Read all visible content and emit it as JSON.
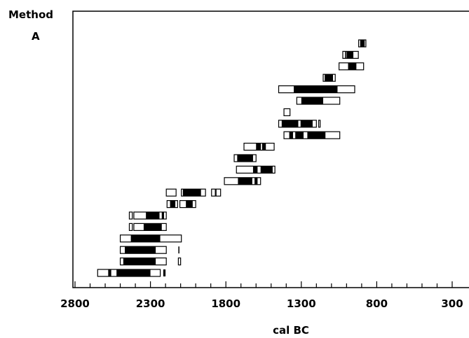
{
  "chart_data": {
    "type": "range-bars",
    "method_label": "Method",
    "method_value": "A",
    "xlabel": "cal BC",
    "xlim": [
      2800,
      300
    ],
    "x_ticks": [
      2800,
      2300,
      1800,
      1300,
      800,
      300
    ],
    "x_minor_step": 100,
    "rows": [
      {
        "segments": [
          [
            872,
            920,
            "open"
          ],
          [
            880,
            910,
            "filled"
          ]
        ]
      },
      {
        "segments": [
          [
            922,
            1025,
            "open"
          ],
          [
            955,
            1000,
            "filled"
          ],
          [
            1003,
            1010,
            "filled"
          ]
        ]
      },
      {
        "segments": [
          [
            887,
            1050,
            "open"
          ],
          [
            935,
            990,
            "filled"
          ]
        ]
      },
      {
        "segments": [
          [
            1075,
            1155,
            "open"
          ],
          [
            1090,
            1145,
            "filled"
          ]
        ]
      },
      {
        "segments": [
          [
            946,
            1450,
            "open"
          ],
          [
            1060,
            1350,
            "filled"
          ]
        ]
      },
      {
        "segments": [
          [
            1045,
            1330,
            "open"
          ],
          [
            1155,
            1300,
            "filled"
          ]
        ]
      },
      {
        "segments": [
          [
            1375,
            1415,
            "open"
          ]
        ]
      },
      {
        "segments": [
          [
            1175,
            1185,
            "open"
          ],
          [
            1200,
            1450,
            "open"
          ],
          [
            1225,
            1305,
            "filled"
          ],
          [
            1320,
            1430,
            "filled"
          ]
        ]
      },
      {
        "segments": [
          [
            1045,
            1415,
            "open"
          ],
          [
            1140,
            1260,
            "filled"
          ],
          [
            1285,
            1340,
            "filled"
          ],
          [
            1355,
            1380,
            "filled"
          ]
        ]
      },
      {
        "segments": [
          [
            1480,
            1680,
            "open"
          ],
          [
            1535,
            1560,
            "filled"
          ],
          [
            1568,
            1600,
            "filled"
          ]
        ]
      },
      {
        "segments": [
          [
            1600,
            1745,
            "open"
          ],
          [
            1620,
            1725,
            "filled"
          ]
        ]
      },
      {
        "segments": [
          [
            1475,
            1730,
            "open"
          ],
          [
            1490,
            1570,
            "filled"
          ],
          [
            1590,
            1620,
            "filled"
          ]
        ]
      },
      {
        "segments": [
          [
            1570,
            1810,
            "open"
          ],
          [
            1625,
            1720,
            "filled"
          ],
          [
            1590,
            1610,
            "filled"
          ]
        ]
      },
      {
        "segments": [
          [
            1835,
            1865,
            "open"
          ],
          [
            1870,
            1895,
            "open"
          ],
          [
            1935,
            2095,
            "open"
          ],
          [
            1965,
            2085,
            "filled"
          ],
          [
            2130,
            2195,
            "open"
          ]
        ]
      },
      {
        "segments": [
          [
            2000,
            2105,
            "open"
          ],
          [
            2020,
            2065,
            "filled"
          ],
          [
            2120,
            2190,
            "open"
          ],
          [
            2135,
            2170,
            "filled"
          ]
        ]
      },
      {
        "segments": [
          [
            2195,
            2410,
            "open"
          ],
          [
            2240,
            2330,
            "filled"
          ],
          [
            2210,
            2225,
            "filled"
          ],
          [
            2420,
            2440,
            "open"
          ]
        ]
      },
      {
        "segments": [
          [
            2195,
            2410,
            "open"
          ],
          [
            2225,
            2345,
            "filled"
          ],
          [
            2420,
            2440,
            "open"
          ]
        ]
      },
      {
        "segments": [
          [
            2095,
            2500,
            "open"
          ],
          [
            2235,
            2430,
            "filled"
          ]
        ]
      },
      {
        "segments": [
          [
            2195,
            2500,
            "open"
          ],
          [
            2265,
            2470,
            "filled"
          ],
          [
            2110,
            2115,
            "filled"
          ]
        ]
      },
      {
        "segments": [
          [
            2195,
            2500,
            "open"
          ],
          [
            2265,
            2480,
            "filled"
          ],
          [
            2100,
            2115,
            "open"
          ]
        ]
      },
      {
        "segments": [
          [
            2235,
            2650,
            "open"
          ],
          [
            2300,
            2525,
            "filled"
          ],
          [
            2560,
            2580,
            "filled"
          ],
          [
            2200,
            2215,
            "filled"
          ]
        ]
      }
    ]
  }
}
